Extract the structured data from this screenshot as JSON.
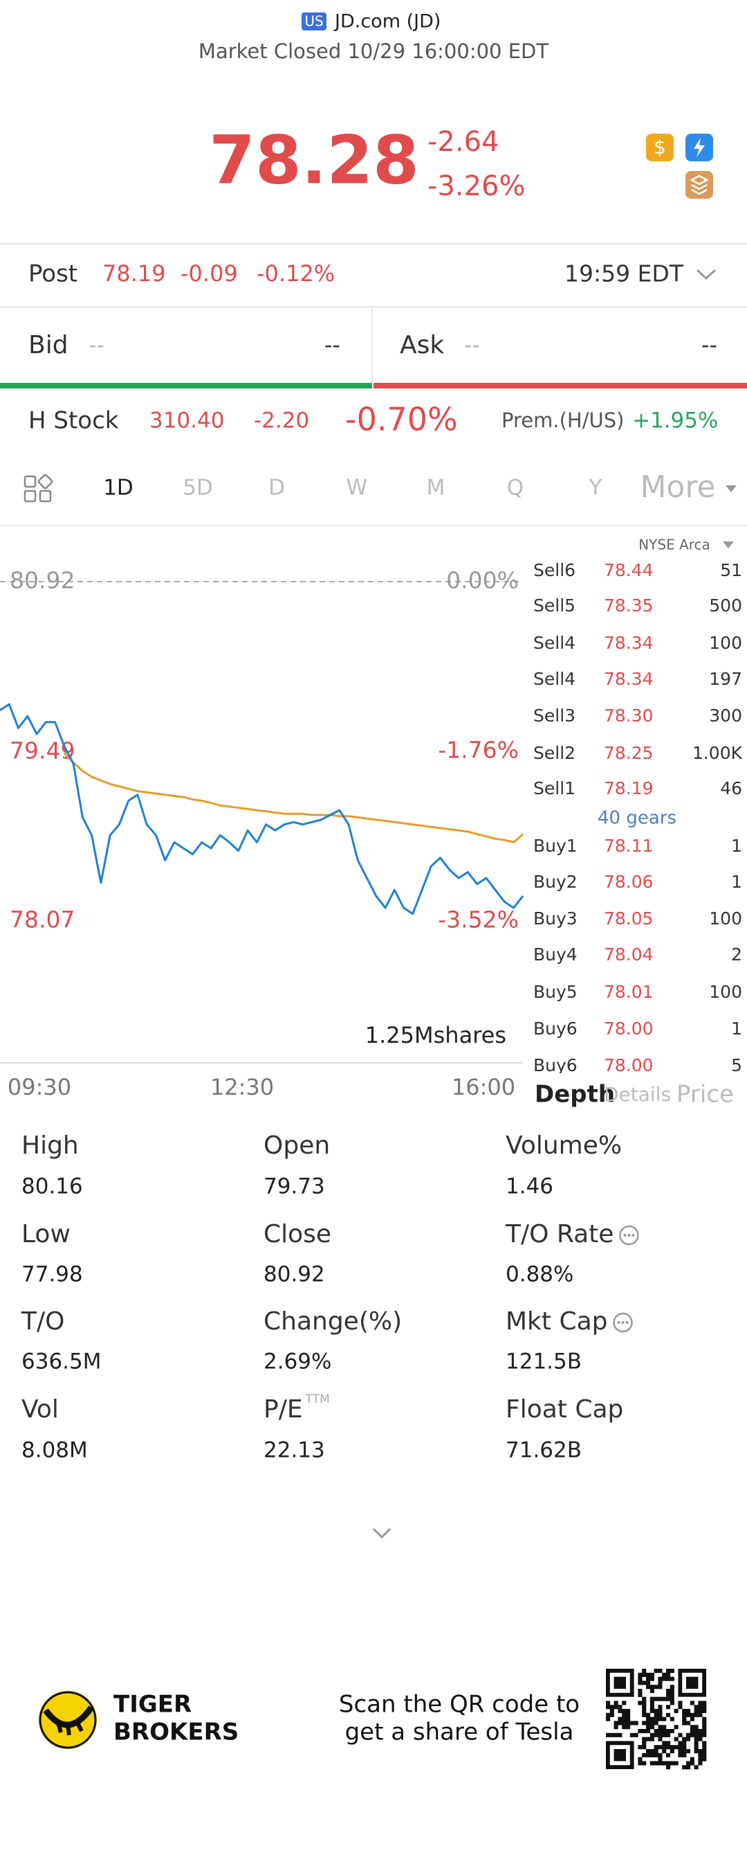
{
  "header": {
    "market_badge": "US",
    "title": "JD.com (JD)",
    "status": "Market Closed 10/29 16:00:00 EDT"
  },
  "quote": {
    "price": "78.28",
    "change": "-2.64",
    "change_pct": "-3.26%"
  },
  "post": {
    "label": "Post",
    "price": "78.19",
    "change": "-0.09",
    "change_pct": "-0.12%",
    "time": "19:59 EDT"
  },
  "bid_ask": {
    "bid_label": "Bid",
    "bid_price": "--",
    "bid_size": "--",
    "ask_label": "Ask",
    "ask_price": "--",
    "ask_size": "--"
  },
  "h_stock": {
    "label": "H Stock",
    "price": "310.40",
    "change": "-2.20",
    "change_pct": "-0.70%",
    "premium_label": "Prem.(H/US)",
    "premium": "+1.95%"
  },
  "tabs": [
    "1D",
    "5D",
    "D",
    "W",
    "M",
    "Q",
    "Y",
    "More"
  ],
  "chart_data": {
    "type": "line",
    "ylim": [
      78.07,
      80.92
    ],
    "yticks": [
      80.92,
      79.49,
      78.07
    ],
    "y2lim": [
      -3.52,
      0
    ],
    "y2ticks": [
      {
        "value": 0,
        "label": "0.00%"
      },
      {
        "value": -1.76,
        "label": "-1.76%"
      },
      {
        "value": -3.52,
        "label": "-3.52%"
      }
    ],
    "x_labels": [
      "09:30",
      "12:30",
      "16:00"
    ],
    "volume_label": "1.25Mshares",
    "series": [
      {
        "color": "#1f80d6",
        "values": [
          79.84,
          79.89,
          79.69,
          79.79,
          79.64,
          79.74,
          79.74,
          79.54,
          79.39,
          78.94,
          78.79,
          78.39,
          78.79,
          78.88,
          79.08,
          79.13,
          78.88,
          78.79,
          78.58,
          78.73,
          78.68,
          78.63,
          78.73,
          78.68,
          78.79,
          78.73,
          78.66,
          78.83,
          78.73,
          78.88,
          78.83,
          78.88,
          78.9,
          78.88,
          78.9,
          78.92,
          78.96,
          79.0,
          78.88,
          78.58,
          78.43,
          78.28,
          78.18,
          78.33,
          78.18,
          78.13,
          78.33,
          78.53,
          78.6,
          78.5,
          78.43,
          78.48,
          78.38,
          78.43,
          78.33,
          78.23,
          78.18,
          78.28
        ]
      },
      {
        "color": "#e89a2c",
        "values": [
          null,
          null,
          null,
          null,
          null,
          null,
          null,
          79.48,
          79.4,
          79.33,
          79.28,
          79.25,
          79.22,
          79.2,
          79.18,
          79.16,
          79.15,
          79.14,
          79.13,
          79.12,
          79.11,
          79.09,
          79.08,
          79.06,
          79.04,
          79.03,
          79.02,
          79.01,
          79.0,
          78.99,
          78.98,
          78.97,
          78.97,
          78.97,
          78.96,
          78.96,
          78.96,
          78.95,
          78.95,
          78.94,
          78.93,
          78.92,
          78.91,
          78.9,
          78.89,
          78.88,
          78.87,
          78.86,
          78.85,
          78.84,
          78.83,
          78.82,
          78.8,
          78.78,
          78.76,
          78.75,
          78.73,
          78.8
        ]
      }
    ]
  },
  "order_book": {
    "exchange": "NYSE Arca",
    "sells": [
      [
        "Sell6",
        "78.44",
        "51"
      ],
      [
        "Sell5",
        "78.35",
        "500"
      ],
      [
        "Sell4",
        "78.34",
        "100"
      ],
      [
        "Sell4",
        "78.34",
        "197"
      ],
      [
        "Sell3",
        "78.30",
        "300"
      ],
      [
        "Sell2",
        "78.25",
        "1.00K"
      ],
      [
        "Sell1",
        "78.19",
        "46"
      ]
    ],
    "gears": "40 gears",
    "buys": [
      [
        "Buy1",
        "78.11",
        "1"
      ],
      [
        "Buy2",
        "78.06",
        "1"
      ],
      [
        "Buy3",
        "78.05",
        "100"
      ],
      [
        "Buy4",
        "78.04",
        "2"
      ],
      [
        "Buy5",
        "78.01",
        "100"
      ],
      [
        "Buy6",
        "78.00",
        "1"
      ],
      [
        "Buy6",
        "78.00",
        "5"
      ]
    ],
    "tabs": [
      "Depth",
      "Details",
      "Price"
    ]
  },
  "stats": [
    {
      "label": "High",
      "value": "80.16"
    },
    {
      "label": "Open",
      "value": "79.73"
    },
    {
      "label": "Volume%",
      "value": "1.46"
    },
    {
      "label": "Low",
      "value": "77.98"
    },
    {
      "label": "Close",
      "value": "80.92"
    },
    {
      "label": "T/O Rate",
      "value": "0.88%"
    },
    {
      "label": "T/O",
      "value": "636.5M"
    },
    {
      "label": "Change(%)",
      "value": "2.69%"
    },
    {
      "label": "Mkt Cap",
      "value": "121.5B"
    },
    {
      "label": "Vol",
      "value": "8.08M"
    },
    {
      "label": "P/E",
      "sup": "TTM",
      "value": "22.13"
    },
    {
      "label": "Float Cap",
      "value": "71.62B"
    }
  ],
  "footer": {
    "brand_line1": "TIGER",
    "brand_line2": "BROKERS",
    "cta_line1": "Scan the QR code to",
    "cta_line2": "get a share of Tesla"
  }
}
